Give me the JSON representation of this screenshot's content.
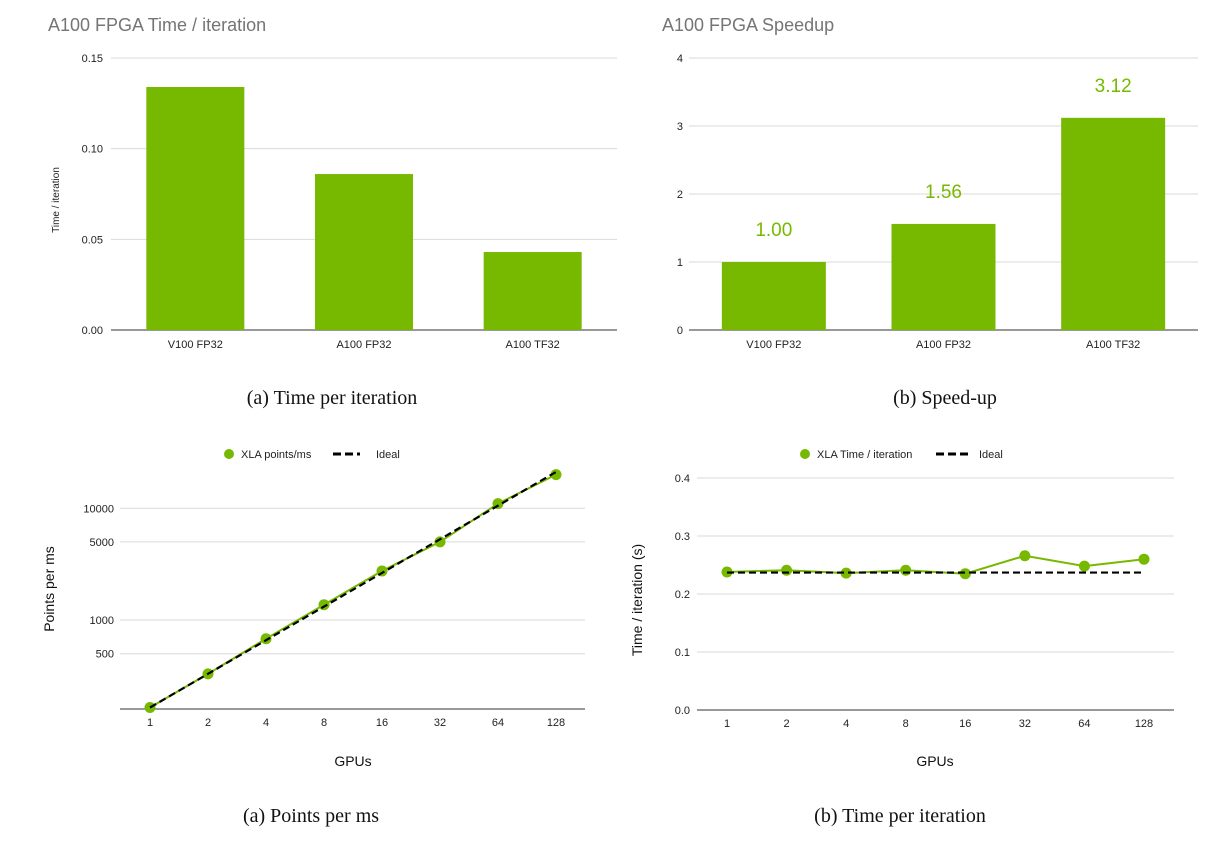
{
  "captions": {
    "top_left": "(a) Time per iteration",
    "top_right": "(b) Speed-up",
    "bottom_left": "(a) Points per ms",
    "bottom_right": "(b) Time per iteration"
  },
  "colors": {
    "accent": "#76b900",
    "ideal": "#000000"
  },
  "chart_data": [
    {
      "type": "bar",
      "title": "A100 FPGA Time / iteration",
      "xlabel": "",
      "ylabel": "Time / iteration",
      "categories": [
        "V100 FP32",
        "A100 FP32",
        "A100 TF32"
      ],
      "values": [
        0.134,
        0.086,
        0.043
      ],
      "ylim": [
        0,
        0.15
      ],
      "yticks": [
        "0.00",
        "0.05",
        "0.10",
        "0.15"
      ],
      "grid": true
    },
    {
      "type": "bar",
      "title": "A100 FPGA Speedup",
      "xlabel": "",
      "ylabel": "",
      "categories": [
        "V100 FP32",
        "A100 FP32",
        "A100 TF32"
      ],
      "values": [
        1.0,
        1.56,
        3.12
      ],
      "data_labels": [
        "1.00",
        "1.56",
        "3.12"
      ],
      "ylim": [
        0,
        4
      ],
      "yticks": [
        "0",
        "1",
        "2",
        "3",
        "4"
      ],
      "grid": true
    },
    {
      "type": "line",
      "title": "",
      "xlabel": "GPUs",
      "ylabel": "Points per ms",
      "x": [
        "1",
        "2",
        "4",
        "8",
        "16",
        "32",
        "64",
        "128"
      ],
      "yscale": "log",
      "ylim": [
        160,
        22000
      ],
      "yticks": [
        "500",
        "1000",
        "5000",
        "10000"
      ],
      "legend": "top-center",
      "series": [
        {
          "name": "XLA points/ms",
          "style": "solid-markers",
          "values": [
            165,
            330,
            680,
            1370,
            2750,
            5000,
            11000,
            20000
          ]
        },
        {
          "name": "Ideal",
          "style": "dashed",
          "values": [
            165,
            330,
            660,
            1320,
            2640,
            5280,
            10560,
            21120
          ]
        }
      ],
      "grid": true
    },
    {
      "type": "line",
      "title": "",
      "xlabel": "GPUs",
      "ylabel": "Time / iteration (s)",
      "x": [
        "1",
        "2",
        "4",
        "8",
        "16",
        "32",
        "64",
        "128"
      ],
      "ylim": [
        0,
        0.4
      ],
      "yticks": [
        "0.0",
        "0.1",
        "0.2",
        "0.3",
        "0.4"
      ],
      "legend": "top-center",
      "series": [
        {
          "name": "XLA Time / iteration",
          "style": "solid-markers",
          "values": [
            0.238,
            0.241,
            0.236,
            0.241,
            0.235,
            0.266,
            0.248,
            0.26
          ]
        },
        {
          "name": "Ideal",
          "style": "dashed",
          "values": [
            0.237,
            0.237,
            0.237,
            0.237,
            0.237,
            0.237,
            0.237,
            0.237
          ]
        }
      ],
      "grid": true
    }
  ]
}
